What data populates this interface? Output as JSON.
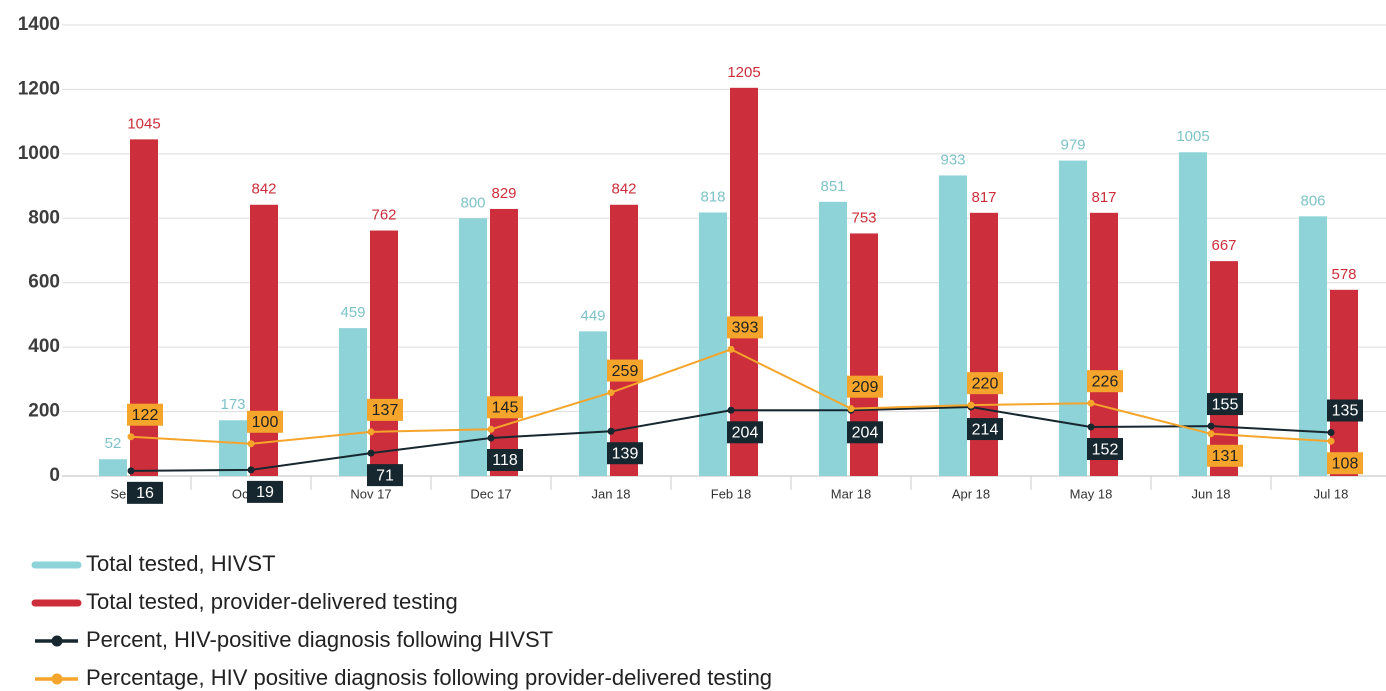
{
  "chart_data": {
    "type": "bar",
    "categories": [
      "Sep 17",
      "Oct 17",
      "Nov 17",
      "Dec 17",
      "Jan 18",
      "Feb 18",
      "Mar 18",
      "Apr 18",
      "May 18",
      "Jun 18",
      "Jul 18"
    ],
    "ylim": [
      0,
      1400
    ],
    "yticks": [
      0,
      200,
      400,
      600,
      800,
      1000,
      1200,
      1400
    ],
    "grid": true,
    "series": [
      {
        "name": "Total tested, HIVST",
        "type": "bar",
        "color": "#8dd3d8",
        "values": [
          52,
          173,
          459,
          800,
          449,
          818,
          851,
          933,
          979,
          1005,
          806
        ]
      },
      {
        "name": "Total tested, provider-delivered testing",
        "type": "bar",
        "color": "#cc2f3b",
        "values": [
          1045,
          842,
          762,
          829,
          842,
          1205,
          753,
          817,
          817,
          667,
          578
        ]
      },
      {
        "name": "Percent, HIV-positive diagnosis following HIVST",
        "type": "line",
        "color": "#17272f",
        "values": [
          16,
          19,
          71,
          118,
          139,
          204,
          204,
          214,
          152,
          155,
          135
        ]
      },
      {
        "name": "Percentage, HIV positive diagnosis following provider-delivered testing",
        "type": "line",
        "color": "#f5a52b",
        "values": [
          122,
          100,
          137,
          145,
          259,
          393,
          209,
          220,
          226,
          131,
          108
        ]
      }
    ]
  }
}
